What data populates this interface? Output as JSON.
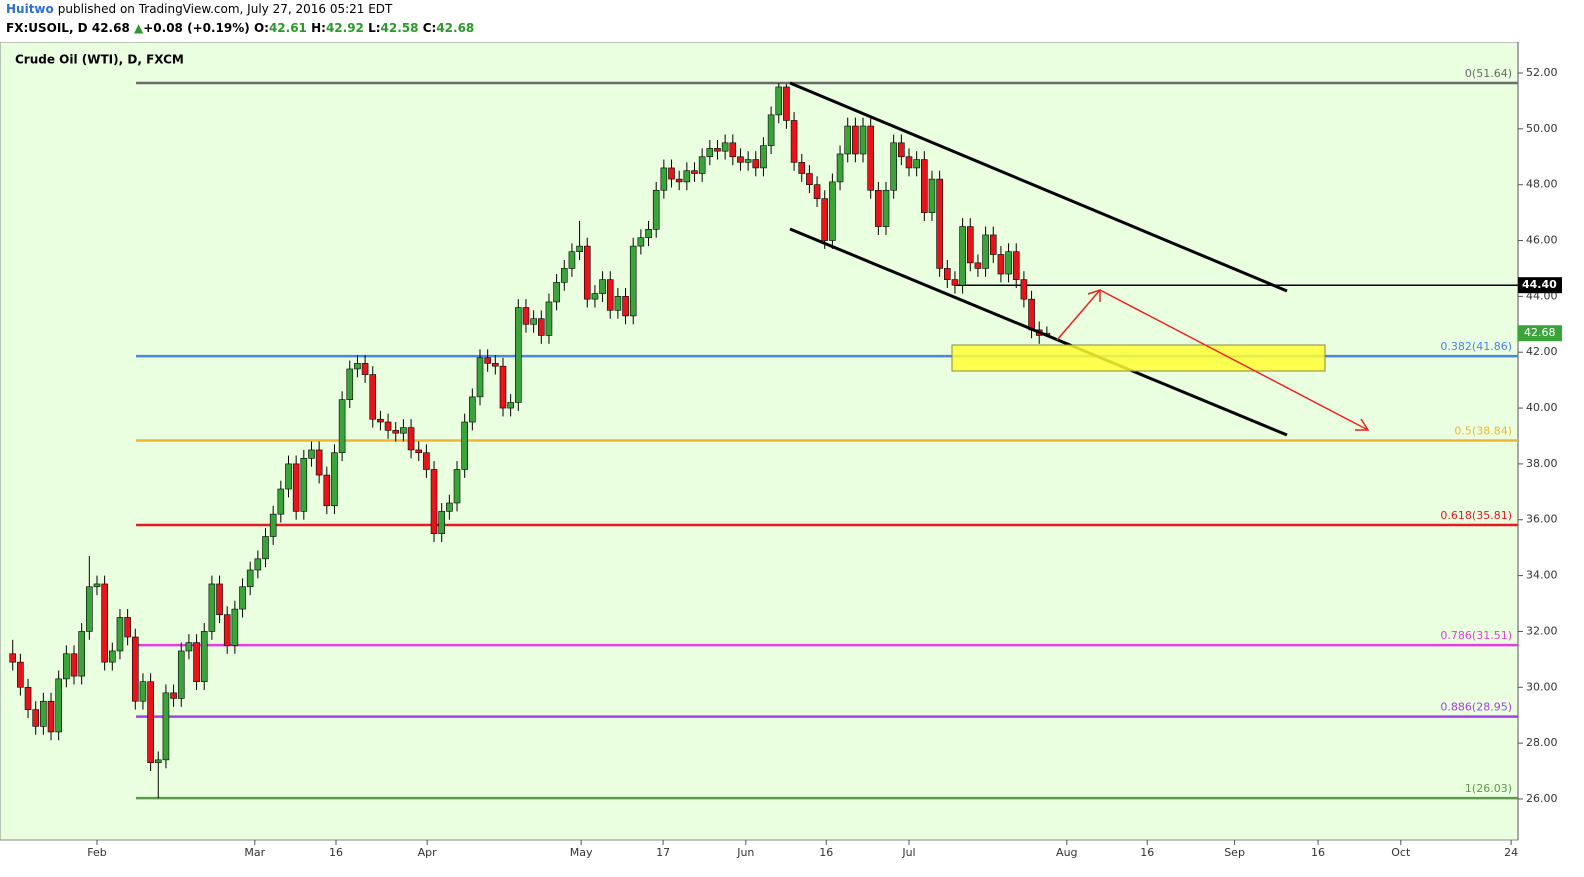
{
  "header": {
    "author": "Huitwo",
    "published": "published on TradingView.com, July 27, 2016 05:21 EDT",
    "symbol": "FX:USOIL, D",
    "arrow": "▲",
    "change": "+0.08",
    "change_pct": "(+0.19%)",
    "ohlc_labels": [
      "O:",
      "H:",
      "L:",
      "C:"
    ]
  },
  "chart_data": {
    "type": "candlestick",
    "title": "Crude Oil (WTI), D, FXCM",
    "x": [
      -11,
      -10,
      -9,
      -8,
      -7,
      -6,
      -5,
      -4,
      -3,
      -2,
      -1,
      0,
      1,
      2,
      3,
      4,
      5,
      6,
      7,
      8,
      9,
      10,
      11,
      12,
      13,
      14,
      15,
      16,
      17,
      18,
      19,
      20,
      21,
      22,
      23,
      24,
      25,
      26,
      27,
      28,
      29,
      30,
      31,
      32,
      33,
      34,
      35,
      36,
      37,
      38,
      39,
      40,
      41,
      42,
      43,
      44,
      45,
      46,
      47,
      48,
      49,
      50,
      51,
      52,
      53,
      54,
      55,
      56,
      57,
      58,
      59,
      60,
      61,
      62,
      63,
      64,
      65,
      66,
      67,
      68,
      69,
      70,
      71,
      72,
      73,
      74,
      75,
      76,
      77,
      78,
      79,
      80,
      81,
      82,
      83,
      84,
      85,
      86,
      87,
      88,
      89,
      90,
      91,
      92,
      93,
      94,
      95,
      96,
      97,
      98,
      99,
      100,
      101,
      102,
      103,
      104,
      105,
      106,
      107,
      108,
      109,
      110,
      111,
      112,
      113,
      114,
      115,
      116,
      117,
      118,
      119,
      120,
      121,
      122,
      123,
      124
    ],
    "open": [
      31.2,
      30.9,
      30.0,
      29.2,
      28.6,
      29.5,
      28.4,
      30.3,
      31.2,
      30.4,
      32.0,
      33.6,
      33.7,
      30.9,
      31.3,
      32.5,
      31.8,
      29.5,
      30.2,
      27.3,
      27.4,
      29.8,
      29.6,
      31.3,
      31.6,
      30.2,
      32.0,
      33.7,
      32.6,
      31.5,
      32.8,
      33.6,
      34.2,
      34.6,
      35.4,
      36.2,
      37.1,
      38.0,
      36.3,
      38.2,
      38.5,
      37.6,
      36.5,
      38.4,
      40.3,
      41.4,
      41.6,
      41.2,
      39.6,
      39.5,
      39.2,
      39.1,
      39.3,
      38.5,
      38.4,
      37.8,
      35.5,
      36.3,
      36.6,
      37.8,
      39.5,
      40.4,
      41.8,
      41.6,
      41.5,
      40.0,
      40.2,
      43.6,
      43.0,
      43.2,
      42.6,
      43.8,
      44.5,
      45.0,
      45.6,
      45.8,
      43.9,
      44.1,
      44.6,
      43.5,
      44.0,
      43.3,
      45.8,
      46.1,
      46.4,
      47.8,
      48.6,
      48.2,
      48.1,
      48.5,
      48.4,
      49.0,
      49.3,
      49.2,
      49.5,
      49.0,
      48.8,
      48.9,
      48.6,
      49.4,
      50.5,
      51.5,
      50.3,
      48.8,
      48.4,
      48.0,
      47.5,
      46.0,
      48.1,
      49.1,
      50.1,
      49.1,
      50.1,
      47.8,
      46.5,
      47.8,
      49.5,
      49.0,
      48.6,
      48.9,
      47.0,
      48.2,
      45.0,
      44.6,
      44.4,
      46.5,
      45.2,
      45.0,
      46.2,
      45.5,
      44.8,
      45.6,
      44.6,
      43.9,
      42.8,
      42.61
    ],
    "high": [
      31.7,
      31.2,
      30.3,
      29.5,
      29.8,
      29.8,
      30.6,
      31.5,
      31.5,
      32.3,
      34.7,
      34.0,
      34.0,
      31.6,
      32.8,
      32.8,
      32.1,
      30.5,
      30.5,
      27.7,
      30.1,
      30.1,
      31.6,
      31.9,
      31.9,
      32.3,
      34.0,
      34.0,
      32.9,
      33.1,
      33.9,
      34.5,
      34.9,
      35.7,
      36.5,
      37.4,
      38.3,
      38.3,
      38.5,
      38.8,
      38.8,
      37.9,
      38.7,
      40.6,
      41.7,
      41.9,
      41.9,
      41.5,
      39.9,
      39.8,
      39.5,
      39.6,
      39.6,
      38.8,
      38.7,
      38.1,
      36.6,
      36.9,
      38.1,
      39.8,
      40.7,
      42.1,
      42.1,
      41.9,
      41.8,
      40.5,
      43.9,
      43.9,
      43.5,
      43.5,
      44.1,
      44.8,
      45.3,
      45.9,
      46.7,
      46.1,
      44.4,
      44.9,
      44.9,
      44.3,
      44.3,
      46.1,
      46.4,
      46.7,
      48.1,
      48.9,
      48.9,
      48.5,
      48.8,
      48.8,
      49.3,
      49.6,
      49.6,
      49.8,
      49.8,
      49.3,
      49.2,
      49.2,
      49.7,
      50.8,
      51.64,
      51.6,
      50.6,
      49.1,
      48.7,
      48.3,
      47.8,
      48.4,
      49.4,
      50.4,
      50.4,
      50.4,
      50.4,
      48.1,
      48.1,
      49.8,
      49.8,
      49.3,
      49.2,
      49.2,
      48.5,
      48.5,
      45.3,
      44.9,
      46.8,
      46.8,
      45.5,
      46.5,
      46.5,
      45.8,
      45.9,
      45.9,
      44.9,
      44.2,
      43.1,
      42.92
    ],
    "low": [
      30.6,
      29.7,
      28.9,
      28.3,
      28.3,
      28.1,
      28.1,
      30.0,
      30.1,
      30.1,
      31.7,
      33.3,
      30.6,
      30.6,
      31.0,
      31.5,
      29.2,
      29.2,
      27.0,
      26.03,
      27.1,
      29.3,
      29.3,
      31.0,
      29.9,
      29.9,
      31.7,
      32.3,
      31.2,
      31.2,
      32.5,
      33.3,
      33.9,
      34.3,
      35.1,
      35.9,
      36.8,
      36.0,
      36.0,
      37.9,
      37.3,
      36.2,
      36.2,
      38.1,
      40.0,
      41.1,
      40.9,
      39.3,
      39.2,
      38.9,
      38.8,
      38.8,
      38.2,
      38.1,
      37.5,
      35.2,
      35.2,
      36.0,
      36.3,
      37.5,
      39.2,
      40.1,
      41.3,
      41.2,
      39.7,
      39.7,
      39.9,
      42.7,
      42.7,
      42.3,
      42.3,
      43.5,
      44.2,
      44.7,
      45.3,
      43.6,
      43.6,
      43.8,
      43.2,
      43.2,
      43.0,
      43.0,
      45.5,
      45.8,
      46.1,
      47.5,
      47.9,
      47.8,
      47.8,
      48.1,
      48.1,
      48.7,
      48.9,
      48.9,
      48.7,
      48.5,
      48.5,
      48.3,
      48.3,
      49.1,
      50.2,
      50.0,
      48.5,
      48.1,
      47.7,
      47.2,
      45.7,
      45.7,
      47.8,
      48.8,
      48.8,
      48.8,
      47.5,
      46.2,
      46.2,
      47.5,
      48.7,
      48.3,
      48.3,
      46.7,
      46.7,
      44.7,
      44.3,
      44.1,
      44.1,
      44.9,
      44.7,
      44.7,
      45.2,
      44.5,
      44.5,
      44.3,
      43.6,
      42.5,
      42.3,
      42.58
    ],
    "close": [
      30.9,
      30.0,
      29.2,
      28.6,
      29.5,
      28.4,
      30.3,
      31.2,
      30.4,
      32.0,
      33.6,
      33.7,
      30.9,
      31.3,
      32.5,
      31.8,
      29.5,
      30.2,
      27.3,
      27.4,
      29.8,
      29.6,
      31.3,
      31.6,
      30.2,
      32.0,
      33.7,
      32.6,
      31.5,
      32.8,
      33.6,
      34.2,
      34.6,
      35.4,
      36.2,
      37.1,
      38.0,
      36.3,
      38.2,
      38.5,
      37.6,
      36.5,
      38.4,
      40.3,
      41.4,
      41.6,
      41.2,
      39.6,
      39.5,
      39.2,
      39.1,
      39.3,
      38.5,
      38.4,
      37.8,
      35.5,
      36.3,
      36.6,
      37.8,
      39.5,
      40.4,
      41.8,
      41.6,
      41.5,
      40.0,
      40.2,
      43.6,
      43.0,
      43.2,
      42.6,
      43.8,
      44.5,
      45.0,
      45.6,
      45.8,
      43.9,
      44.1,
      44.6,
      43.5,
      44.0,
      43.3,
      45.8,
      46.1,
      46.4,
      47.8,
      48.6,
      48.2,
      48.1,
      48.5,
      48.4,
      49.0,
      49.3,
      49.2,
      49.5,
      49.0,
      48.8,
      48.9,
      48.6,
      49.4,
      50.5,
      51.5,
      50.3,
      48.8,
      48.4,
      48.0,
      47.5,
      46.0,
      48.1,
      49.1,
      50.1,
      49.1,
      50.1,
      47.8,
      46.5,
      47.8,
      49.5,
      49.0,
      48.6,
      48.9,
      47.0,
      48.2,
      45.0,
      44.6,
      44.4,
      46.5,
      45.2,
      45.0,
      46.2,
      45.5,
      44.8,
      45.6,
      44.6,
      43.9,
      42.8,
      42.6,
      42.68
    ],
    "up_color": "#3aa43a",
    "down_color": "#e8141c",
    "xlim": [
      -12.66,
      185.5
    ],
    "xticks": [
      {
        "value": 0,
        "label": "Feb"
      },
      {
        "value": 20.6,
        "label": "Mar"
      },
      {
        "value": 31.2,
        "label": "16"
      },
      {
        "value": 43.1,
        "label": "Apr"
      },
      {
        "value": 63.2,
        "label": "May"
      },
      {
        "value": 73.9,
        "label": "17"
      },
      {
        "value": 84.7,
        "label": "Jun"
      },
      {
        "value": 95.2,
        "label": "16"
      },
      {
        "value": 106,
        "label": "Jul"
      },
      {
        "value": 126.6,
        "label": "Aug"
      },
      {
        "value": 137.1,
        "label": "16"
      },
      {
        "value": 148.5,
        "label": "Sep"
      },
      {
        "value": 159.4,
        "label": "16"
      },
      {
        "value": 170.2,
        "label": "Oct"
      },
      {
        "value": 184.6,
        "label": "24"
      }
    ],
    "ylim": [
      24.53,
      53.11
    ],
    "yticks": [
      {
        "value": 26,
        "label": "26.00"
      },
      {
        "value": 28,
        "label": "28.00"
      },
      {
        "value": 30,
        "label": "30.00"
      },
      {
        "value": 32,
        "label": "32.00"
      },
      {
        "value": 34,
        "label": "34.00"
      },
      {
        "value": 36,
        "label": "36.00"
      },
      {
        "value": 38,
        "label": "38.00"
      },
      {
        "value": 40,
        "label": "40.00"
      },
      {
        "value": 42,
        "label": "42.00"
      },
      {
        "value": 44,
        "label": "44.00"
      },
      {
        "value": 46,
        "label": "46.00"
      },
      {
        "value": 48,
        "label": "48.00"
      },
      {
        "value": 50,
        "label": "50.00"
      },
      {
        "value": 52,
        "label": "52.00"
      }
    ],
    "fib": [
      {
        "value": 51.64,
        "label": "0(51.64)",
        "color": "#6b6b6b"
      },
      {
        "value": 41.86,
        "label": "0.382(41.86)",
        "color": "#4a82e6"
      },
      {
        "value": 38.84,
        "label": "0.5(38.84)",
        "color": "#f2b632"
      },
      {
        "value": 35.81,
        "label": "0.618(35.81)",
        "color": "#e31b23"
      },
      {
        "value": 31.51,
        "label": "0.786(31.51)",
        "color": "#e23fe0"
      },
      {
        "value": 28.95,
        "label": "0.886(28.95)",
        "color": "#a53fe6"
      },
      {
        "value": 26.03,
        "label": "1(26.03)",
        "color": "#5f9a4a"
      }
    ],
    "fib_start": 5.1,
    "level": {
      "value": 44.4,
      "label": "44.40",
      "start": 111.9
    }
  }
}
